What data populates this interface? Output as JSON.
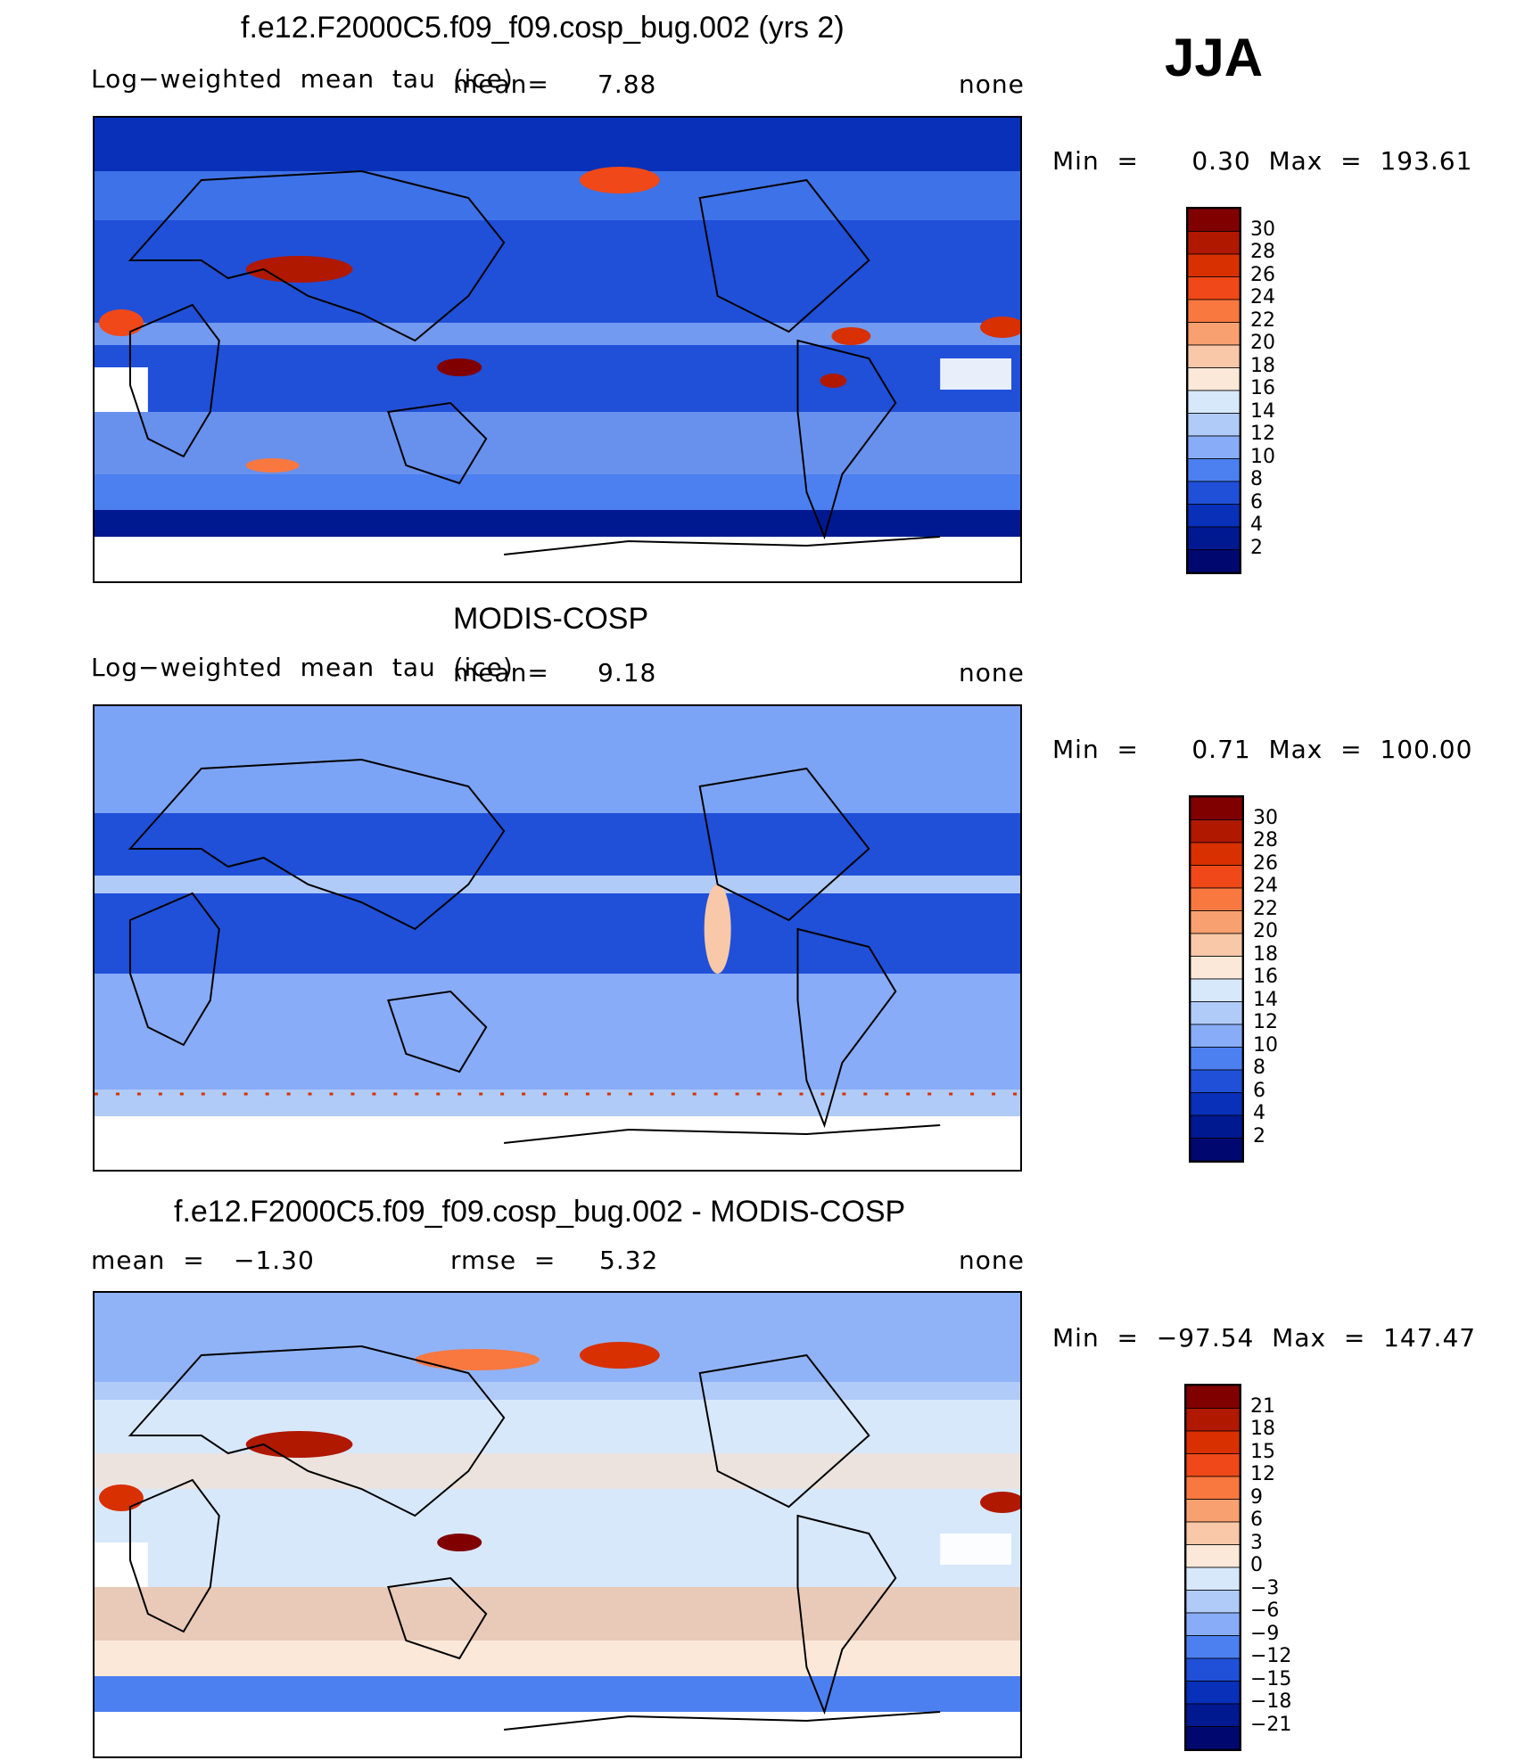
{
  "season": "JJA",
  "panels": [
    {
      "title": "f.e12.F2000C5.f09_f09.cosp_bug.002 (yrs 2)",
      "left_label": "Log−weighted  mean  tau  (ice)",
      "stat_label": "mean=",
      "stat_value": "7.88",
      "stat2_label": "",
      "stat2_value": "",
      "units": "none",
      "minmax": "Min  =      0.30  Max  =  193.61",
      "levels": [
        "30",
        "28",
        "26",
        "24",
        "22",
        "20",
        "18",
        "16",
        "14",
        "12",
        "10",
        "8",
        "6",
        "4",
        "2"
      ],
      "palette": "abs"
    },
    {
      "title": "MODIS-COSP",
      "left_label": "Log−weighted  mean  tau  (ice)",
      "stat_label": "mean=",
      "stat_value": "9.18",
      "stat2_label": "",
      "stat2_value": "",
      "units": "none",
      "minmax": "Min  =      0.71  Max  =  100.00",
      "levels": [
        "30",
        "28",
        "26",
        "24",
        "22",
        "20",
        "18",
        "16",
        "14",
        "12",
        "10",
        "8",
        "6",
        "4",
        "2"
      ],
      "palette": "abs"
    },
    {
      "title": "f.e12.F2000C5.f09_f09.cosp_bug.002 - MODIS-COSP",
      "left_label": "mean  =",
      "stat_label": "",
      "stat_value": "−1.30",
      "stat2_label": "rmse  =",
      "stat2_value": "5.32",
      "units": "none",
      "minmax": "Min  =  −97.54  Max  =  147.47",
      "levels": [
        "21",
        "18",
        "15",
        "12",
        "9",
        "6",
        "3",
        "0",
        "−3",
        "−6",
        "−9",
        "−12",
        "−15",
        "−18",
        "−21"
      ],
      "palette": "diff"
    }
  ],
  "colors": {
    "abs": [
      "#800000",
      "#b01800",
      "#d83000",
      "#f04818",
      "#f87840",
      "#f8a070",
      "#f8c8a8",
      "#fbe8d8",
      "#d8e8fb",
      "#b0cbf8",
      "#88acf8",
      "#4c80f0",
      "#2050d8",
      "#0830b8",
      "#001890",
      "#000870"
    ],
    "diff": [
      "#800000",
      "#b01800",
      "#d83000",
      "#f04818",
      "#f87840",
      "#f8a070",
      "#f8c8a8",
      "#fbe8d8",
      "#d8e8fb",
      "#b0cbf8",
      "#88acf8",
      "#4c80f0",
      "#2050d8",
      "#0830b8",
      "#001890",
      "#000870"
    ]
  },
  "chart_data": [
    {
      "type": "heatmap",
      "title": "f.e12.F2000C5.f09_f09.cosp_bug.002 (yrs 2)",
      "mean": 7.88,
      "min": 0.3,
      "max": 193.61,
      "contour_levels": [
        2,
        4,
        6,
        8,
        10,
        12,
        14,
        16,
        18,
        20,
        22,
        24,
        26,
        28,
        30
      ],
      "units": "none"
    },
    {
      "type": "heatmap",
      "title": "MODIS-COSP",
      "mean": 9.18,
      "min": 0.71,
      "max": 100.0,
      "contour_levels": [
        2,
        4,
        6,
        8,
        10,
        12,
        14,
        16,
        18,
        20,
        22,
        24,
        26,
        28,
        30
      ],
      "units": "none"
    },
    {
      "type": "heatmap",
      "title": "f.e12.F2000C5.f09_f09.cosp_bug.002 - MODIS-COSP",
      "mean": -1.3,
      "rmse": 5.32,
      "min": -97.54,
      "max": 147.47,
      "contour_levels": [
        -21,
        -18,
        -15,
        -12,
        -9,
        -6,
        -3,
        0,
        3,
        6,
        9,
        12,
        15,
        18,
        21
      ],
      "units": "none"
    }
  ]
}
